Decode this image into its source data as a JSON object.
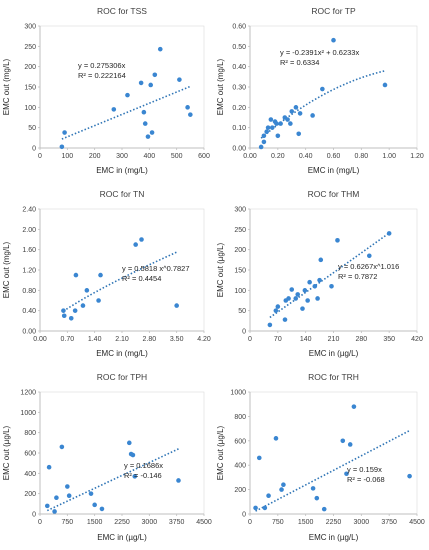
{
  "chart_data": [
    {
      "type": "scatter",
      "title": "ROC for TSS",
      "xlabel": "EMC in (mg/L)",
      "ylabel": "EMC out (mg/L)",
      "xlim": [
        0,
        600
      ],
      "ylim": [
        0,
        300
      ],
      "xticks": [
        "0",
        "100",
        "200",
        "300",
        "400",
        "500",
        "600"
      ],
      "yticks": [
        "0",
        "50",
        "100",
        "150",
        "200",
        "250",
        "300"
      ],
      "points": [
        [
          80,
          3
        ],
        [
          90,
          38
        ],
        [
          270,
          95
        ],
        [
          320,
          130
        ],
        [
          370,
          160
        ],
        [
          380,
          88
        ],
        [
          385,
          60
        ],
        [
          395,
          28
        ],
        [
          405,
          155
        ],
        [
          410,
          38
        ],
        [
          420,
          180
        ],
        [
          440,
          243
        ],
        [
          510,
          168
        ],
        [
          540,
          100
        ],
        [
          550,
          82
        ]
      ],
      "trendline": {
        "kind": "power",
        "a": 0.275306,
        "b": 1,
        "dotted": true
      },
      "equation_lines": [
        "y = 0.275306x",
        "R² = 0.222164"
      ]
    },
    {
      "type": "scatter",
      "title": "ROC for TP",
      "xlabel": "EMC in (mg/L)",
      "ylabel": "EMC out (mg/L)",
      "xlim": [
        0,
        1.2
      ],
      "ylim": [
        0,
        0.6
      ],
      "xticks": [
        "0.00",
        "0.20",
        "0.40",
        "0.60",
        "0.80",
        "1.00",
        "1.20"
      ],
      "yticks": [
        "0.00",
        "0.10",
        "0.20",
        "0.30",
        "0.40",
        "0.50",
        "0.60"
      ],
      "points": [
        [
          0.08,
          0.005
        ],
        [
          0.1,
          0.03
        ],
        [
          0.1,
          0.06
        ],
        [
          0.12,
          0.08
        ],
        [
          0.13,
          0.1
        ],
        [
          0.15,
          0.14
        ],
        [
          0.16,
          0.1
        ],
        [
          0.18,
          0.13
        ],
        [
          0.19,
          0.12
        ],
        [
          0.2,
          0.06
        ],
        [
          0.22,
          0.12
        ],
        [
          0.25,
          0.15
        ],
        [
          0.27,
          0.14
        ],
        [
          0.29,
          0.12
        ],
        [
          0.3,
          0.18
        ],
        [
          0.33,
          0.2
        ],
        [
          0.35,
          0.07
        ],
        [
          0.36,
          0.17
        ],
        [
          0.45,
          0.16
        ],
        [
          0.52,
          0.29
        ],
        [
          0.6,
          0.53
        ],
        [
          0.97,
          0.31
        ]
      ],
      "trendline": {
        "kind": "poly2",
        "a": -0.2391,
        "b": 0.6233,
        "dotted": true
      },
      "equation_lines": [
        "y = -0.2391x² + 0.6233x",
        "R² = 0.6334"
      ]
    },
    {
      "type": "scatter",
      "title": "ROC for TN",
      "xlabel": "EMC in (mg/L)",
      "ylabel": "EMC out (mg/L)",
      "xlim": [
        0,
        4.2
      ],
      "ylim": [
        0,
        2.4
      ],
      "xticks": [
        "0.00",
        "0.70",
        "1.40",
        "2.10",
        "2.80",
        "3.50",
        "4.20"
      ],
      "yticks": [
        "0.00",
        "0.40",
        "0.80",
        "1.20",
        "1.60",
        "2.00",
        "2.40"
      ],
      "points": [
        [
          0.6,
          0.4
        ],
        [
          0.62,
          0.3
        ],
        [
          0.8,
          0.25
        ],
        [
          0.9,
          0.4
        ],
        [
          0.92,
          1.1
        ],
        [
          1.1,
          0.5
        ],
        [
          1.2,
          0.8
        ],
        [
          1.5,
          0.6
        ],
        [
          1.55,
          1.1
        ],
        [
          2.45,
          1.7
        ],
        [
          2.6,
          1.8
        ],
        [
          3.5,
          0.5
        ]
      ],
      "trendline": {
        "kind": "power",
        "a": 0.5818,
        "b": 0.7827,
        "dotted": true
      },
      "equation_lines": [
        "y = 0.5818 x^0.7827",
        "R² = 0.4454"
      ]
    },
    {
      "type": "scatter",
      "title": "ROC for THM",
      "xlabel": "EMC in (µg/L)",
      "ylabel": "EMC out (µg/L)",
      "xlim": [
        0,
        420
      ],
      "ylim": [
        0,
        300
      ],
      "xticks": [
        "0",
        "70",
        "140",
        "210",
        "280",
        "350",
        "420"
      ],
      "yticks": [
        "0",
        "50",
        "100",
        "150",
        "200",
        "250",
        "300"
      ],
      "points": [
        [
          50,
          15
        ],
        [
          65,
          50
        ],
        [
          70,
          60
        ],
        [
          88,
          28
        ],
        [
          90,
          75
        ],
        [
          97,
          80
        ],
        [
          105,
          102
        ],
        [
          115,
          80
        ],
        [
          120,
          90
        ],
        [
          132,
          55
        ],
        [
          138,
          100
        ],
        [
          145,
          75
        ],
        [
          150,
          120
        ],
        [
          163,
          110
        ],
        [
          170,
          80
        ],
        [
          175,
          125
        ],
        [
          178,
          175
        ],
        [
          205,
          110
        ],
        [
          220,
          223
        ],
        [
          300,
          185
        ],
        [
          350,
          240
        ]
      ],
      "trendline": {
        "kind": "power",
        "a": 0.6267,
        "b": 1.016,
        "dotted": true
      },
      "equation_lines": [
        "y = 0.6267x^1.016",
        "R² = 0.7872"
      ]
    },
    {
      "type": "scatter",
      "title": "ROC for TPH",
      "xlabel": "EMC in (µg/L)",
      "ylabel": "EMC out (µg/L)",
      "xlim": [
        0,
        4500
      ],
      "ylim": [
        0,
        1200
      ],
      "xticks": [
        "0",
        "750",
        "1500",
        "2250",
        "3000",
        "3750",
        "4500"
      ],
      "yticks": [
        "0",
        "200",
        "400",
        "600",
        "800",
        "1000",
        "1200"
      ],
      "points": [
        [
          200,
          80
        ],
        [
          250,
          460
        ],
        [
          400,
          25
        ],
        [
          450,
          160
        ],
        [
          600,
          660
        ],
        [
          750,
          270
        ],
        [
          800,
          180
        ],
        [
          1400,
          200
        ],
        [
          1500,
          90
        ],
        [
          1700,
          50
        ],
        [
          2450,
          700
        ],
        [
          2500,
          590
        ],
        [
          2550,
          580
        ],
        [
          2600,
          370
        ],
        [
          3800,
          330
        ]
      ],
      "trendline": {
        "kind": "power",
        "a": 0.1686,
        "b": 1,
        "dotted": true
      },
      "equation_lines": [
        "y = 0.1686x",
        "R² = -0.146"
      ]
    },
    {
      "type": "scatter",
      "title": "ROC for TRH",
      "xlabel": "EMC in (µg/L)",
      "ylabel": "EMC out (µg/L)",
      "xlim": [
        0,
        4500
      ],
      "ylim": [
        0,
        1000
      ],
      "xticks": [
        "0",
        "750",
        "1500",
        "2250",
        "3000",
        "3750",
        "4500"
      ],
      "yticks": [
        "0",
        "200",
        "400",
        "600",
        "800",
        "1000"
      ],
      "points": [
        [
          150,
          50
        ],
        [
          250,
          460
        ],
        [
          400,
          50
        ],
        [
          500,
          150
        ],
        [
          700,
          620
        ],
        [
          850,
          200
        ],
        [
          900,
          240
        ],
        [
          1700,
          210
        ],
        [
          1800,
          130
        ],
        [
          2000,
          40
        ],
        [
          2500,
          600
        ],
        [
          2600,
          330
        ],
        [
          2700,
          570
        ],
        [
          2800,
          880
        ],
        [
          4300,
          310
        ]
      ],
      "trendline": {
        "kind": "power",
        "a": 0.159,
        "b": 1,
        "dotted": true
      },
      "equation_lines": [
        "y = 0.159x",
        "R² = -0.068"
      ]
    }
  ],
  "style": {
    "marker_color": "#3a86d1",
    "trend_color": "#2e74b5",
    "axis_color": "#bfbfbf",
    "grid_color": "#d9d9d9"
  }
}
